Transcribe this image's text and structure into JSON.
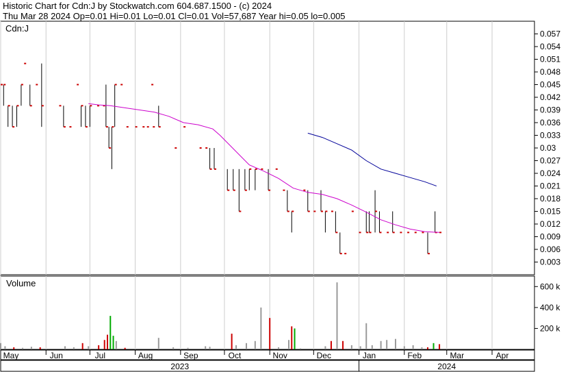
{
  "header": {
    "line1": "Historic Chart for Cdn:J by Stockwatch.com 604.687.1500 - (c) 2024",
    "line2": "Thu Mar 28 2024  Op=0.01  Hi=0.01  Lo=0.01  Cl=0.01  Vol=57,687  Year hi=0.05  lo=0.005"
  },
  "price_panel": {
    "label": "Cdn:J"
  },
  "volume_panel": {
    "label": "Volume"
  },
  "colors": {
    "ma_short": "#cc00cc",
    "ma_long": "#000099",
    "bar": "#000000",
    "close_tick": "#cc0000",
    "vol_up": "#00aa00",
    "vol_down": "#cc0000",
    "vol_flat": "#999999",
    "frame": "#000000",
    "grid": "#cccccc"
  },
  "chart_data": [
    {
      "type": "bar",
      "subtype": "ohlc",
      "title": "Cdn:J",
      "y_ticks": [
        "0.057",
        "0.054",
        "0.051",
        "0.048",
        "0.045",
        "0.042",
        "0.039",
        "0.036",
        "0.033",
        "0.03",
        "0.027",
        "0.024",
        "0.021",
        "0.018",
        "0.015",
        "0.012",
        "0.009",
        "0.006",
        "0.003"
      ],
      "ylim": [
        0,
        0.06
      ],
      "x_month_labels": [
        "May",
        "Jun",
        "Jul",
        "Aug",
        "Sep",
        "Oct",
        "Nov",
        "Dec",
        "Jan",
        "Feb",
        "Mar",
        "Apr"
      ],
      "x_year_labels": [
        "2023",
        "2024"
      ],
      "xlim_days": [
        0,
        365
      ],
      "month_start_days": [
        0,
        31,
        61,
        92,
        123,
        153,
        184,
        214,
        245,
        276,
        305,
        336
      ],
      "bars": [
        {
          "t": 0,
          "h": 0.045,
          "l": 0.045,
          "c": 0.045
        },
        {
          "t": 2,
          "h": 0.045,
          "l": 0.04,
          "c": 0.045
        },
        {
          "t": 5,
          "h": 0.04,
          "l": 0.035,
          "c": 0.04
        },
        {
          "t": 8,
          "h": 0.04,
          "l": 0.035,
          "c": 0.035
        },
        {
          "t": 11,
          "h": 0.04,
          "l": 0.035,
          "c": 0.04
        },
        {
          "t": 14,
          "h": 0.045,
          "l": 0.04,
          "c": 0.045
        },
        {
          "t": 16,
          "h": 0.05,
          "l": 0.05,
          "c": 0.05
        },
        {
          "t": 20,
          "h": 0.045,
          "l": 0.04,
          "c": 0.04
        },
        {
          "t": 24,
          "h": 0.045,
          "l": 0.045,
          "c": 0.045
        },
        {
          "t": 28,
          "h": 0.05,
          "l": 0.035,
          "c": 0.04
        },
        {
          "t": 40,
          "h": 0.04,
          "l": 0.04,
          "c": 0.04
        },
        {
          "t": 43,
          "h": 0.04,
          "l": 0.035,
          "c": 0.035
        },
        {
          "t": 47,
          "h": 0.035,
          "l": 0.035,
          "c": 0.035
        },
        {
          "t": 52,
          "h": 0.045,
          "l": 0.045,
          "c": 0.045
        },
        {
          "t": 55,
          "h": 0.04,
          "l": 0.035,
          "c": 0.04
        },
        {
          "t": 58,
          "h": 0.04,
          "l": 0.035,
          "c": 0.035
        },
        {
          "t": 61,
          "h": 0.04,
          "l": 0.035,
          "c": 0.04
        },
        {
          "t": 66,
          "h": 0.04,
          "l": 0.04,
          "c": 0.04
        },
        {
          "t": 70,
          "h": 0.04,
          "l": 0.04,
          "c": 0.04
        },
        {
          "t": 72,
          "h": 0.045,
          "l": 0.035,
          "c": 0.035
        },
        {
          "t": 74,
          "h": 0.035,
          "l": 0.03,
          "c": 0.03
        },
        {
          "t": 76,
          "h": 0.035,
          "l": 0.025,
          "c": 0.035
        },
        {
          "t": 78,
          "h": 0.045,
          "l": 0.035,
          "c": 0.045
        },
        {
          "t": 82,
          "h": 0.045,
          "l": 0.045,
          "c": 0.045
        },
        {
          "t": 86,
          "h": 0.035,
          "l": 0.035,
          "c": 0.035
        },
        {
          "t": 92,
          "h": 0.035,
          "l": 0.035,
          "c": 0.035
        },
        {
          "t": 97,
          "h": 0.035,
          "l": 0.035,
          "c": 0.035
        },
        {
          "t": 100,
          "h": 0.035,
          "l": 0.035,
          "c": 0.035
        },
        {
          "t": 103,
          "h": 0.045,
          "l": 0.045,
          "c": 0.045
        },
        {
          "t": 104,
          "h": 0.035,
          "l": 0.035,
          "c": 0.035
        },
        {
          "t": 108,
          "h": 0.04,
          "l": 0.035,
          "c": 0.035
        },
        {
          "t": 119,
          "h": 0.03,
          "l": 0.03,
          "c": 0.03
        },
        {
          "t": 125,
          "h": 0.035,
          "l": 0.035,
          "c": 0.035
        },
        {
          "t": 136,
          "h": 0.03,
          "l": 0.03,
          "c": 0.03
        },
        {
          "t": 140,
          "h": 0.03,
          "l": 0.03,
          "c": 0.03
        },
        {
          "t": 143,
          "h": 0.03,
          "l": 0.025,
          "c": 0.025
        },
        {
          "t": 146,
          "h": 0.03,
          "l": 0.025,
          "c": 0.025
        },
        {
          "t": 155,
          "h": 0.025,
          "l": 0.02,
          "c": 0.02
        },
        {
          "t": 159,
          "h": 0.025,
          "l": 0.02,
          "c": 0.02
        },
        {
          "t": 163,
          "h": 0.025,
          "l": 0.015,
          "c": 0.015
        },
        {
          "t": 167,
          "h": 0.025,
          "l": 0.02,
          "c": 0.02
        },
        {
          "t": 170,
          "h": 0.025,
          "l": 0.02,
          "c": 0.025
        },
        {
          "t": 174,
          "h": 0.025,
          "l": 0.02,
          "c": 0.025
        },
        {
          "t": 178,
          "h": 0.025,
          "l": 0.025,
          "c": 0.025
        },
        {
          "t": 183,
          "h": 0.025,
          "l": 0.02,
          "c": 0.02
        },
        {
          "t": 188,
          "h": 0.025,
          "l": 0.025,
          "c": 0.025
        },
        {
          "t": 193,
          "h": 0.02,
          "l": 0.02,
          "c": 0.02
        },
        {
          "t": 196,
          "h": 0.02,
          "l": 0.015,
          "c": 0.015
        },
        {
          "t": 199,
          "h": 0.015,
          "l": 0.01,
          "c": 0.015
        },
        {
          "t": 207,
          "h": 0.02,
          "l": 0.02,
          "c": 0.02
        },
        {
          "t": 210,
          "h": 0.02,
          "l": 0.015,
          "c": 0.015
        },
        {
          "t": 214,
          "h": 0.015,
          "l": 0.015,
          "c": 0.015
        },
        {
          "t": 219,
          "h": 0.02,
          "l": 0.015,
          "c": 0.015
        },
        {
          "t": 222,
          "h": 0.015,
          "l": 0.01,
          "c": 0.015
        },
        {
          "t": 226,
          "h": 0.015,
          "l": 0.015,
          "c": 0.015
        },
        {
          "t": 229,
          "h": 0.015,
          "l": 0.01,
          "c": 0.01
        },
        {
          "t": 232,
          "h": 0.01,
          "l": 0.005,
          "c": 0.005
        },
        {
          "t": 235,
          "h": 0.005,
          "l": 0.005,
          "c": 0.005
        },
        {
          "t": 240,
          "h": 0.015,
          "l": 0.015,
          "c": 0.015
        },
        {
          "t": 245,
          "h": 0.01,
          "l": 0.01,
          "c": 0.01
        },
        {
          "t": 250,
          "h": 0.015,
          "l": 0.01,
          "c": 0.01
        },
        {
          "t": 252,
          "h": 0.015,
          "l": 0.01,
          "c": 0.01
        },
        {
          "t": 256,
          "h": 0.02,
          "l": 0.01,
          "c": 0.015
        },
        {
          "t": 259,
          "h": 0.015,
          "l": 0.01,
          "c": 0.01
        },
        {
          "t": 264,
          "h": 0.01,
          "l": 0.01,
          "c": 0.01
        },
        {
          "t": 268,
          "h": 0.015,
          "l": 0.01,
          "c": 0.01
        },
        {
          "t": 273,
          "h": 0.01,
          "l": 0.01,
          "c": 0.01
        },
        {
          "t": 278,
          "h": 0.01,
          "l": 0.01,
          "c": 0.01
        },
        {
          "t": 283,
          "h": 0.01,
          "l": 0.01,
          "c": 0.01
        },
        {
          "t": 288,
          "h": 0.01,
          "l": 0.01,
          "c": 0.01
        },
        {
          "t": 292,
          "h": 0.01,
          "l": 0.005,
          "c": 0.005
        },
        {
          "t": 297,
          "h": 0.015,
          "l": 0.01,
          "c": 0.01
        },
        {
          "t": 300,
          "h": 0.01,
          "l": 0.01,
          "c": 0.01
        }
      ],
      "series": [
        {
          "x": [
            60,
            67,
            75,
            85,
            95,
            105,
            115,
            125,
            135,
            145,
            150,
            160,
            170,
            180,
            190,
            200,
            210,
            220,
            230,
            240,
            250,
            260,
            270,
            280,
            290,
            300
          ],
          "values": [
            0.0405,
            0.0402,
            0.04,
            0.0395,
            0.039,
            0.0385,
            0.0375,
            0.036,
            0.0355,
            0.0345,
            0.033,
            0.0295,
            0.026,
            0.0245,
            0.0228,
            0.0205,
            0.0195,
            0.019,
            0.018,
            0.0165,
            0.0148,
            0.013,
            0.0118,
            0.0108,
            0.0102,
            0.01
          ]
        },
        {
          "x": [
            210,
            220,
            230,
            240,
            250,
            260,
            270,
            280,
            290,
            298
          ],
          "values": [
            0.0335,
            0.0325,
            0.031,
            0.0295,
            0.027,
            0.025,
            0.024,
            0.023,
            0.022,
            0.021
          ]
        }
      ]
    },
    {
      "type": "bar",
      "title": "Volume",
      "y_ticks": [
        "600 k",
        "400 k",
        "200 k"
      ],
      "ylim": [
        0,
        700000
      ],
      "bars": [
        {
          "t": 0,
          "v": 60000,
          "d": "flat"
        },
        {
          "t": 3,
          "v": 30000,
          "d": "flat"
        },
        {
          "t": 9,
          "v": 20000,
          "d": "down"
        },
        {
          "t": 15,
          "v": 15000,
          "d": "flat"
        },
        {
          "t": 21,
          "v": 25000,
          "d": "flat"
        },
        {
          "t": 27,
          "v": 20000,
          "d": "down"
        },
        {
          "t": 44,
          "v": 30000,
          "d": "flat"
        },
        {
          "t": 50,
          "v": 20000,
          "d": "flat"
        },
        {
          "t": 56,
          "v": 60000,
          "d": "down"
        },
        {
          "t": 60,
          "v": 30000,
          "d": "flat"
        },
        {
          "t": 67,
          "v": 40000,
          "d": "down"
        },
        {
          "t": 71,
          "v": 90000,
          "d": "down"
        },
        {
          "t": 73,
          "v": 140000,
          "d": "down"
        },
        {
          "t": 75,
          "v": 320000,
          "d": "up"
        },
        {
          "t": 77,
          "v": 130000,
          "d": "up"
        },
        {
          "t": 79,
          "v": 80000,
          "d": "flat"
        },
        {
          "t": 85,
          "v": 15000,
          "d": "down"
        },
        {
          "t": 108,
          "v": 110000,
          "d": "flat"
        },
        {
          "t": 118,
          "v": 20000,
          "d": "flat"
        },
        {
          "t": 128,
          "v": 15000,
          "d": "flat"
        },
        {
          "t": 140,
          "v": 30000,
          "d": "flat"
        },
        {
          "t": 143,
          "v": 25000,
          "d": "flat"
        },
        {
          "t": 158,
          "v": 150000,
          "d": "down"
        },
        {
          "t": 161,
          "v": 40000,
          "d": "flat"
        },
        {
          "t": 168,
          "v": 60000,
          "d": "flat"
        },
        {
          "t": 174,
          "v": 80000,
          "d": "flat"
        },
        {
          "t": 178,
          "v": 400000,
          "d": "flat"
        },
        {
          "t": 184,
          "v": 300000,
          "d": "down"
        },
        {
          "t": 190,
          "v": 20000,
          "d": "flat"
        },
        {
          "t": 197,
          "v": 90000,
          "d": "flat"
        },
        {
          "t": 199,
          "v": 220000,
          "d": "down"
        },
        {
          "t": 201,
          "v": 200000,
          "d": "up"
        },
        {
          "t": 205,
          "v": 10000,
          "d": "flat"
        },
        {
          "t": 222,
          "v": 30000,
          "d": "flat"
        },
        {
          "t": 226,
          "v": 80000,
          "d": "down"
        },
        {
          "t": 230,
          "v": 640000,
          "d": "flat"
        },
        {
          "t": 234,
          "v": 80000,
          "d": "down"
        },
        {
          "t": 240,
          "v": 40000,
          "d": "flat"
        },
        {
          "t": 246,
          "v": 30000,
          "d": "flat"
        },
        {
          "t": 250,
          "v": 250000,
          "d": "flat"
        },
        {
          "t": 254,
          "v": 40000,
          "d": "flat"
        },
        {
          "t": 260,
          "v": 80000,
          "d": "flat"
        },
        {
          "t": 264,
          "v": 90000,
          "d": "flat"
        },
        {
          "t": 270,
          "v": 100000,
          "d": "flat"
        },
        {
          "t": 276,
          "v": 30000,
          "d": "flat"
        },
        {
          "t": 282,
          "v": 40000,
          "d": "flat"
        },
        {
          "t": 288,
          "v": 20000,
          "d": "flat"
        },
        {
          "t": 292,
          "v": 20000,
          "d": "down"
        },
        {
          "t": 296,
          "v": 60000,
          "d": "up"
        },
        {
          "t": 300,
          "v": 50000,
          "d": "down"
        }
      ]
    }
  ]
}
